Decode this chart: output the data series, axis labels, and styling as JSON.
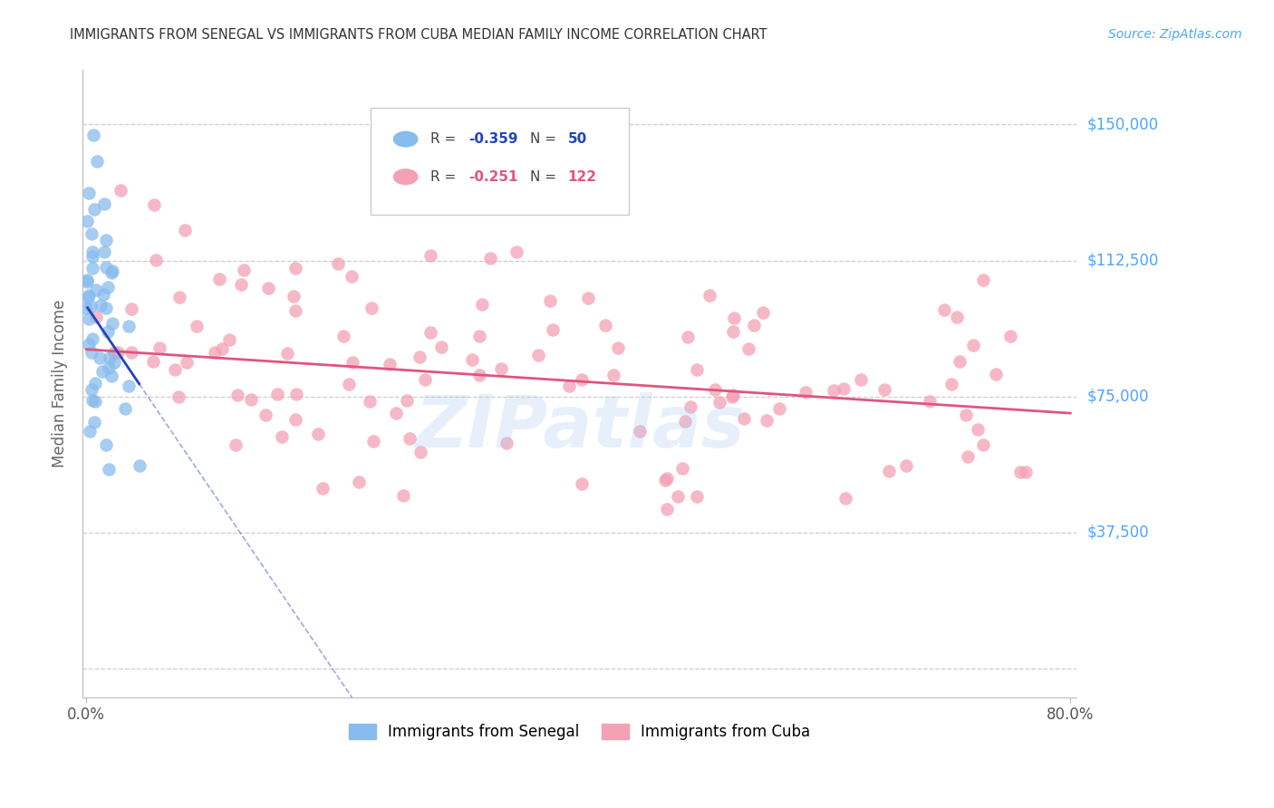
{
  "title": "IMMIGRANTS FROM SENEGAL VS IMMIGRANTS FROM CUBA MEDIAN FAMILY INCOME CORRELATION CHART",
  "source": "Source: ZipAtlas.com",
  "ylabel": "Median Family Income",
  "y_ticks": [
    0,
    37500,
    75000,
    112500,
    150000
  ],
  "y_tick_labels": [
    "",
    "$37,500",
    "$75,000",
    "$112,500",
    "$150,000"
  ],
  "y_label_color": "#4da6ff",
  "senegal_color": "#88bbee",
  "cuba_color": "#f4a0b5",
  "senegal_line_color": "#2244bb",
  "cuba_line_color": "#e05580",
  "background_color": "#ffffff",
  "grid_color": "#cccccc",
  "title_color": "#333333",
  "watermark": "ZIPatlas",
  "xlim": [
    0.0,
    0.8
  ],
  "ylim": [
    0,
    162500
  ],
  "senegal_R": -0.359,
  "senegal_N": 50,
  "cuba_R": -0.251,
  "cuba_N": 122,
  "legend_R_color": "#333333",
  "legend_val_senegal_color": "#2244bb",
  "legend_val_cuba_color": "#e05580"
}
